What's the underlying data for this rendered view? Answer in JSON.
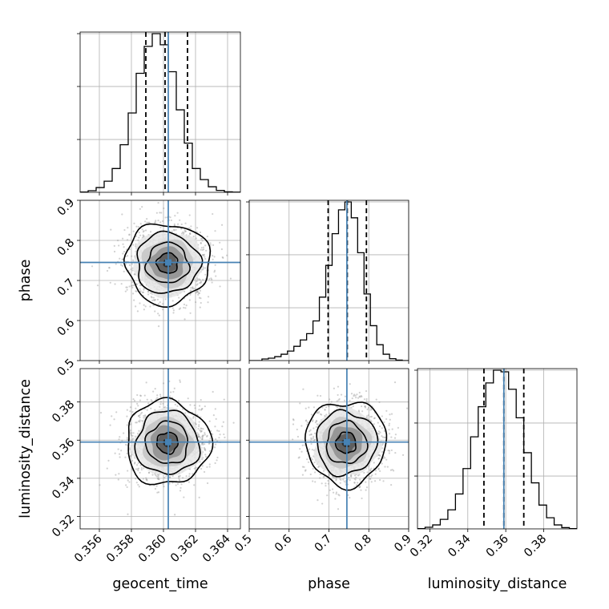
{
  "chart_data": {
    "type": "corner",
    "parameters": [
      "geocent_time",
      "phase",
      "luminosity_distance"
    ],
    "axes": {
      "geocent_time": {
        "label": "geocent_time",
        "range": [
          0.3548,
          0.3648
        ],
        "ticks": [
          0.356,
          0.358,
          0.36,
          0.362,
          0.364
        ],
        "tick_labels": [
          "0.356",
          "0.358",
          "0.360",
          "0.362",
          "0.364"
        ]
      },
      "phase": {
        "label": "phase",
        "range": [
          0.5,
          0.9
        ],
        "ticks": [
          0.5,
          0.6,
          0.7,
          0.8,
          0.9
        ],
        "tick_labels": [
          "0.5",
          "0.6",
          "0.7",
          "0.8",
          "0.9"
        ]
      },
      "luminosity_distance": {
        "label": "luminosity_distance",
        "range": [
          0.3135,
          0.3975
        ],
        "ticks": [
          0.32,
          0.34,
          0.36,
          0.38
        ],
        "tick_labels": [
          "0.32",
          "0.34",
          "0.36",
          "0.38"
        ]
      }
    },
    "truths": {
      "geocent_time": 0.3603,
      "phase": 0.745,
      "luminosity_distance": 0.359
    },
    "quantiles": {
      "geocent_time": [
        0.3589,
        0.3601,
        0.3615
      ],
      "phase": [
        0.698,
        0.746,
        0.794
      ],
      "luminosity_distance": [
        0.3485,
        0.359,
        0.3695
      ]
    },
    "histograms": {
      "geocent_time": [
        0.002,
        0.01,
        0.03,
        0.07,
        0.15,
        0.3,
        0.5,
        0.75,
        0.92,
        1.0,
        0.93,
        0.76,
        0.52,
        0.31,
        0.15,
        0.08,
        0.035,
        0.012,
        0.003,
        0.001
      ],
      "phase": [
        0.0,
        0.0,
        0.01,
        0.015,
        0.025,
        0.04,
        0.06,
        0.09,
        0.13,
        0.17,
        0.25,
        0.4,
        0.6,
        0.8,
        0.95,
        1.0,
        0.9,
        0.68,
        0.42,
        0.22,
        0.1,
        0.04,
        0.012,
        0.003,
        0.0
      ],
      "luminosity_distance": [
        0.002,
        0.01,
        0.025,
        0.06,
        0.12,
        0.22,
        0.38,
        0.58,
        0.77,
        0.92,
        1.0,
        0.99,
        0.88,
        0.7,
        0.48,
        0.29,
        0.15,
        0.07,
        0.025,
        0.008,
        0.002
      ]
    },
    "posterior_spread": {
      "geocent_time": 0.00125,
      "phase": 0.048,
      "luminosity_distance": 0.0105
    },
    "contour_levels_sigma": [
      0.5,
      1.0,
      1.5,
      2.0
    ],
    "colors": {
      "truth": "#4682b4",
      "histogram": "#000000",
      "contour": "#000000",
      "samples": "#9a9a9a",
      "grid": "#b0b0b0"
    },
    "grid": true
  }
}
